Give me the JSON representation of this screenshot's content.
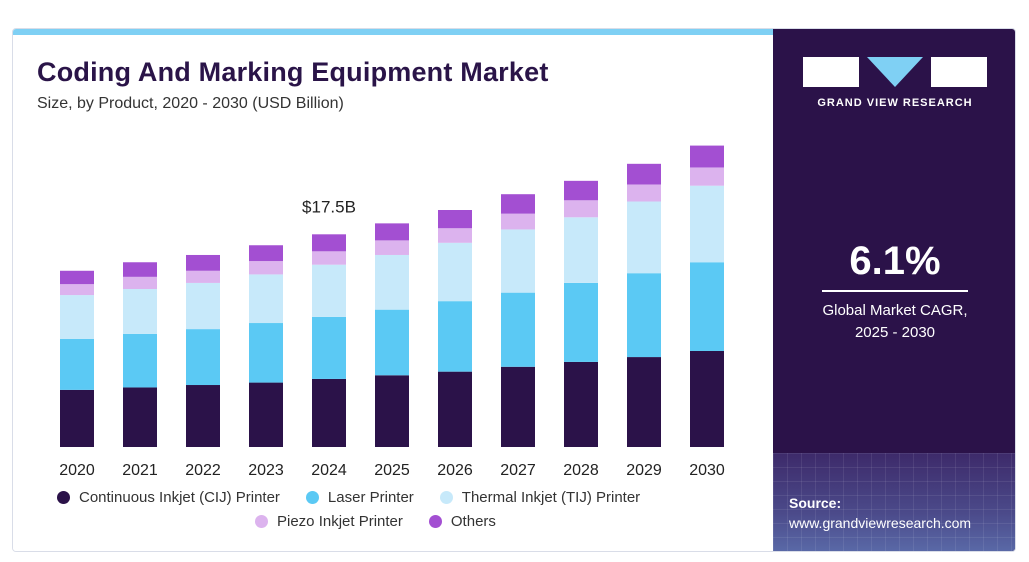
{
  "header": {
    "title": "Coding And Marking Equipment Market",
    "subtitle": "Size, by Product, 2020 - 2030 (USD Billion)"
  },
  "brand": {
    "logo_text": "GRAND VIEW RESEARCH"
  },
  "cagr": {
    "value": "6.1%",
    "label_line1": "Global Market CAGR,",
    "label_line2": "2025 - 2030"
  },
  "source": {
    "title": "Source:",
    "url": "www.grandviewresearch.com"
  },
  "chart_data": {
    "type": "bar",
    "stacked": true,
    "categories": [
      "2020",
      "2021",
      "2022",
      "2023",
      "2024",
      "2025",
      "2026",
      "2027",
      "2028",
      "2029",
      "2030"
    ],
    "series": [
      {
        "name": "Continuous Inkjet (CIJ) Printer",
        "color": "#2b1249",
        "values": [
          4.7,
          4.9,
          5.1,
          5.3,
          5.6,
          5.9,
          6.2,
          6.6,
          7.0,
          7.4,
          7.9
        ]
      },
      {
        "name": "Laser Printer",
        "color": "#5bc9f4",
        "values": [
          4.2,
          4.4,
          4.6,
          4.9,
          5.1,
          5.4,
          5.8,
          6.1,
          6.5,
          6.9,
          7.3
        ]
      },
      {
        "name": "Thermal Inkjet (TIJ) Printer",
        "color": "#c7e9fa",
        "values": [
          3.6,
          3.7,
          3.8,
          4.0,
          4.3,
          4.5,
          4.8,
          5.2,
          5.4,
          5.9,
          6.3
        ]
      },
      {
        "name": "Piezo Inkjet Printer",
        "color": "#dcb3ee",
        "values": [
          0.9,
          1.0,
          1.0,
          1.1,
          1.1,
          1.2,
          1.2,
          1.3,
          1.4,
          1.4,
          1.5
        ]
      },
      {
        "name": "Others",
        "color": "#a34fd2",
        "values": [
          1.1,
          1.2,
          1.3,
          1.3,
          1.4,
          1.4,
          1.5,
          1.6,
          1.6,
          1.7,
          1.8
        ]
      }
    ],
    "annotations": [
      {
        "category": "2024",
        "text": "$17.5B"
      }
    ],
    "ylim": [
      0,
      26
    ],
    "grid": false,
    "legend_position": "bottom"
  }
}
